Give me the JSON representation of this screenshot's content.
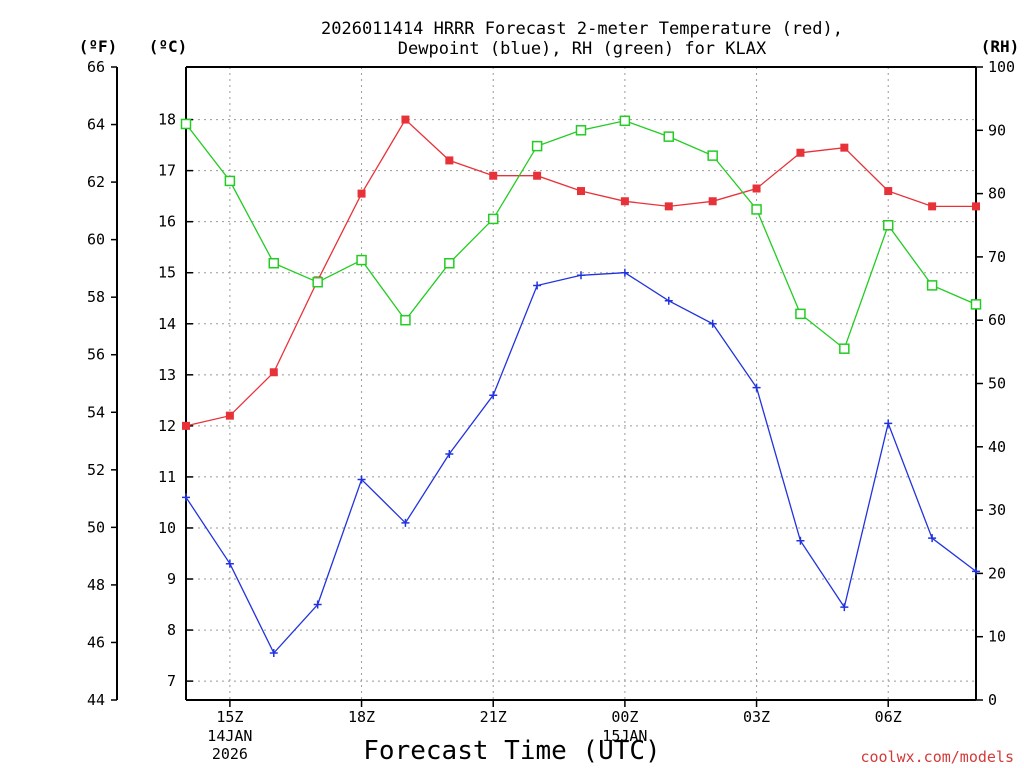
{
  "chart_data": {
    "type": "line",
    "title": [
      "2026011414 HRRR Forecast 2-meter Temperature (red),",
      "Dewpoint (blue), RH (green) for KLAX"
    ],
    "xlabel": "Forecast Time (UTC)",
    "credit": "coolwx.com/models",
    "units": {
      "left_outer": "(ºF)",
      "left_inner": "(ºC)",
      "right": "(RH)"
    },
    "x_ticks": [
      {
        "hour": 15,
        "label": "15Z",
        "sub": [
          "14JAN",
          "2026"
        ]
      },
      {
        "hour": 18,
        "label": "18Z",
        "sub": []
      },
      {
        "hour": 21,
        "label": "21Z",
        "sub": []
      },
      {
        "hour": 24,
        "label": "00Z",
        "sub": [
          "15JAN"
        ]
      },
      {
        "hour": 27,
        "label": "03Z",
        "sub": []
      },
      {
        "hour": 30,
        "label": "06Z",
        "sub": []
      }
    ],
    "xlim": [
      14,
      32
    ],
    "hours": [
      14,
      15,
      16,
      17,
      18,
      19,
      20,
      21,
      22,
      23,
      24,
      25,
      26,
      27,
      28,
      29,
      30,
      31,
      32
    ],
    "ylim_c": [
      6.63,
      19.03
    ],
    "ylim_f": [
      44,
      66
    ],
    "ylim_rh": [
      0,
      100
    ],
    "f_ticks": [
      44,
      46,
      48,
      50,
      52,
      54,
      56,
      58,
      60,
      62,
      64,
      66
    ],
    "c_ticks": [
      7,
      8,
      9,
      10,
      11,
      12,
      13,
      14,
      15,
      16,
      17,
      18
    ],
    "rh_ticks": [
      0,
      10,
      20,
      30,
      40,
      50,
      60,
      70,
      80,
      90,
      100
    ],
    "grid": true,
    "series": [
      {
        "name": "Temperature",
        "axis": "c",
        "color": "#e8323a",
        "marker": "filled-square",
        "values": [
          12.0,
          12.2,
          13.05,
          14.85,
          16.55,
          18.0,
          17.2,
          16.9,
          16.9,
          16.6,
          16.4,
          16.3,
          16.4,
          16.65,
          17.35,
          17.45,
          16.6,
          16.3,
          16.3
        ]
      },
      {
        "name": "Dewpoint",
        "axis": "c",
        "color": "#2233dd",
        "marker": "plus",
        "values": [
          10.6,
          9.3,
          7.55,
          8.5,
          10.95,
          10.1,
          11.45,
          12.6,
          14.75,
          14.95,
          15.0,
          14.45,
          14.0,
          12.75,
          9.75,
          8.45,
          12.05,
          9.8,
          9.15
        ]
      },
      {
        "name": "RH",
        "axis": "rh",
        "color": "#22cc22",
        "marker": "open-square",
        "values": [
          91,
          82,
          69,
          66,
          69.5,
          60,
          69,
          76,
          87.5,
          90,
          91.5,
          89,
          86,
          77.5,
          61,
          55.5,
          75,
          65.5,
          62.5
        ]
      }
    ]
  }
}
